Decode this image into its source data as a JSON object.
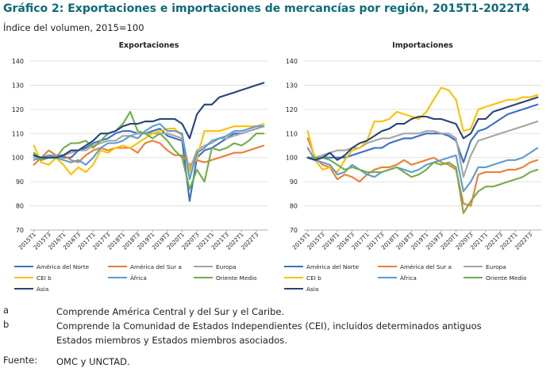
{
  "title": "Gráfico 2: Exportaciones e importaciones de mercancías por región, 2015T1-2022T4",
  "subtitle": "Índice del volumen, 2015=100",
  "chart_data": [
    {
      "type": "line",
      "title": "Exportaciones",
      "ylim": [
        70,
        140
      ],
      "yticks": [
        70,
        80,
        90,
        100,
        110,
        120,
        130,
        140
      ],
      "x": [
        "2015T1",
        "2015T2",
        "2015T3",
        "2015T4",
        "2016T1",
        "2016T2",
        "2016T3",
        "2016T4",
        "2017T1",
        "2017T2",
        "2017T3",
        "2017T4",
        "2018T1",
        "2018T2",
        "2018T3",
        "2018T4",
        "2019T1",
        "2019T2",
        "2019T3",
        "2019T4",
        "2020T1",
        "2020T2",
        "2020T3",
        "2020T4",
        "2021T1",
        "2021T2",
        "2021T3",
        "2021T4",
        "2022T1",
        "2022T2",
        "2022T3",
        "2022T4"
      ],
      "xtick_labels": [
        "2015T1",
        "2015T3",
        "2016T1",
        "2016T3",
        "2017T1",
        "2017T3",
        "2018T1",
        "2018T3",
        "2019T1",
        "2019T3",
        "2020T1",
        "2020T3",
        "2021T1",
        "2021T3",
        "2022T1",
        "2022T3"
      ],
      "series": [
        {
          "name": "América del Norte",
          "color": "#3a6fc4",
          "values": [
            101,
            99,
            100,
            101,
            100,
            100,
            103,
            104,
            106,
            107,
            108,
            110,
            111,
            111,
            110,
            110,
            111,
            112,
            109,
            108,
            107,
            82,
            100,
            103,
            104,
            106,
            108,
            110,
            110,
            111,
            112,
            113
          ]
        },
        {
          "name": "América del Sur a",
          "color": "#ed7d31",
          "values": [
            97,
            100,
            103,
            101,
            101,
            99,
            98,
            101,
            103,
            104,
            103,
            104,
            104,
            104,
            102,
            106,
            107,
            106,
            103,
            101,
            101,
            97,
            99,
            98,
            99,
            100,
            101,
            102,
            102,
            103,
            104,
            105
          ]
        },
        {
          "name": "Europa",
          "color": "#a5a5a5",
          "values": [
            100,
            100,
            101,
            101,
            101,
            102,
            103,
            103,
            105,
            106,
            107,
            107,
            109,
            109,
            110,
            110,
            110,
            110,
            110,
            109,
            108,
            95,
            103,
            105,
            106,
            108,
            108,
            109,
            110,
            111,
            112,
            113
          ]
        },
        {
          "name": "CEI b",
          "color": "#ffc000",
          "values": [
            105,
            98,
            97,
            100,
            97,
            93,
            96,
            94,
            97,
            103,
            102,
            104,
            105,
            104,
            106,
            108,
            110,
            111,
            112,
            112,
            109,
            94,
            100,
            111,
            111,
            111,
            112,
            113,
            113,
            113,
            113,
            114
          ]
        },
        {
          "name": "África",
          "color": "#5b9bd5",
          "values": [
            99,
            100,
            101,
            100,
            99,
            98,
            99,
            97,
            100,
            104,
            106,
            106,
            107,
            109,
            108,
            111,
            113,
            114,
            111,
            111,
            110,
            91,
            102,
            104,
            107,
            108,
            109,
            111,
            111,
            112,
            113,
            113
          ]
        },
        {
          "name": "Oriente Medio",
          "color": "#70ad47",
          "values": [
            102,
            99,
            100,
            100,
            104,
            106,
            106,
            107,
            104,
            107,
            110,
            111,
            114,
            119,
            111,
            110,
            108,
            110,
            107,
            103,
            100,
            87,
            95,
            90,
            104,
            103,
            104,
            106,
            105,
            107,
            110,
            110
          ]
        },
        {
          "name": "Asia",
          "color": "#264478",
          "values": [
            101,
            100,
            100,
            100,
            101,
            103,
            103,
            105,
            107,
            110,
            110,
            111,
            113,
            114,
            114,
            115,
            115,
            116,
            116,
            116,
            114,
            108,
            118,
            122,
            122,
            125,
            126,
            127,
            128,
            129,
            130,
            131
          ]
        }
      ]
    },
    {
      "type": "line",
      "title": "Importaciones",
      "ylim": [
        70,
        140
      ],
      "yticks": [
        70,
        80,
        90,
        100,
        110,
        120,
        130,
        140
      ],
      "x": [
        "2015T1",
        "2015T2",
        "2015T3",
        "2015T4",
        "2016T1",
        "2016T2",
        "2016T3",
        "2016T4",
        "2017T1",
        "2017T2",
        "2017T3",
        "2017T4",
        "2018T1",
        "2018T2",
        "2018T3",
        "2018T4",
        "2019T1",
        "2019T2",
        "2019T3",
        "2019T4",
        "2020T1",
        "2020T2",
        "2020T3",
        "2020T4",
        "2021T1",
        "2021T2",
        "2021T3",
        "2021T4",
        "2022T1",
        "2022T2",
        "2022T3",
        "2022T4"
      ],
      "xtick_labels": [
        "2015T1",
        "2015T3",
        "2016T1",
        "2016T3",
        "2017T1",
        "2017T3",
        "2018T1",
        "2018T3",
        "2019T1",
        "2019T3",
        "2020T1",
        "2020T3",
        "2021T1",
        "2021T3",
        "2022T1",
        "2022T3"
      ],
      "series": [
        {
          "name": "América del Norte",
          "color": "#3a6fc4",
          "values": [
            100,
            99,
            100,
            100,
            100,
            100,
            101,
            102,
            103,
            104,
            104,
            106,
            107,
            108,
            108,
            109,
            110,
            110,
            110,
            109,
            107,
            98,
            107,
            111,
            112,
            114,
            116,
            118,
            119,
            120,
            121,
            122
          ]
        },
        {
          "name": "América del Sur a",
          "color": "#ed7d31",
          "values": [
            108,
            100,
            97,
            96,
            91,
            93,
            92,
            90,
            93,
            95,
            96,
            96,
            97,
            99,
            97,
            98,
            99,
            100,
            98,
            97,
            95,
            81,
            80,
            93,
            94,
            94,
            94,
            95,
            95,
            96,
            98,
            99
          ]
        },
        {
          "name": "Europa",
          "color": "#a5a5a5",
          "values": [
            100,
            100,
            101,
            102,
            103,
            103,
            104,
            104,
            106,
            107,
            108,
            108,
            109,
            110,
            110,
            110,
            111,
            111,
            110,
            110,
            108,
            92,
            101,
            107,
            108,
            109,
            110,
            111,
            112,
            113,
            114,
            115
          ]
        },
        {
          "name": "CEI b",
          "color": "#ffc000",
          "values": [
            111,
            99,
            95,
            96,
            94,
            99,
            103,
            104,
            107,
            115,
            115,
            116,
            119,
            118,
            117,
            116,
            119,
            124,
            129,
            128,
            124,
            111,
            112,
            120,
            121,
            122,
            123,
            124,
            124,
            125,
            125,
            126
          ]
        },
        {
          "name": "África",
          "color": "#5b9bd5",
          "values": [
            104,
            99,
            98,
            97,
            93,
            94,
            97,
            95,
            93,
            92,
            94,
            95,
            96,
            95,
            94,
            95,
            97,
            98,
            99,
            100,
            101,
            86,
            90,
            96,
            96,
            97,
            98,
            99,
            99,
            100,
            102,
            104
          ]
        },
        {
          "name": "Oriente Medio",
          "color": "#70ad47",
          "values": [
            100,
            100,
            100,
            99,
            97,
            95,
            96,
            95,
            94,
            94,
            94,
            95,
            96,
            94,
            92,
            93,
            95,
            98,
            97,
            98,
            96,
            77,
            82,
            86,
            88,
            88,
            89,
            90,
            91,
            92,
            94,
            95
          ]
        },
        {
          "name": "Asia",
          "color": "#264478",
          "values": [
            100,
            99,
            100,
            102,
            99,
            101,
            104,
            106,
            107,
            109,
            111,
            112,
            114,
            114,
            116,
            117,
            117,
            116,
            116,
            115,
            114,
            108,
            110,
            116,
            116,
            119,
            120,
            121,
            122,
            123,
            124,
            125
          ]
        }
      ]
    }
  ],
  "notes": [
    {
      "label": "a",
      "text": "Comprende América Central y del Sur y el Caribe."
    },
    {
      "label": "b",
      "text": "Comprende la Comunidad de Estados Independientes (CEI), incluidos determinados antiguos"
    },
    {
      "label": "",
      "text": "Estados miembros y Estados miembros asociados."
    }
  ],
  "source": {
    "label": "Fuente:",
    "text": "OMC y UNCTAD."
  }
}
